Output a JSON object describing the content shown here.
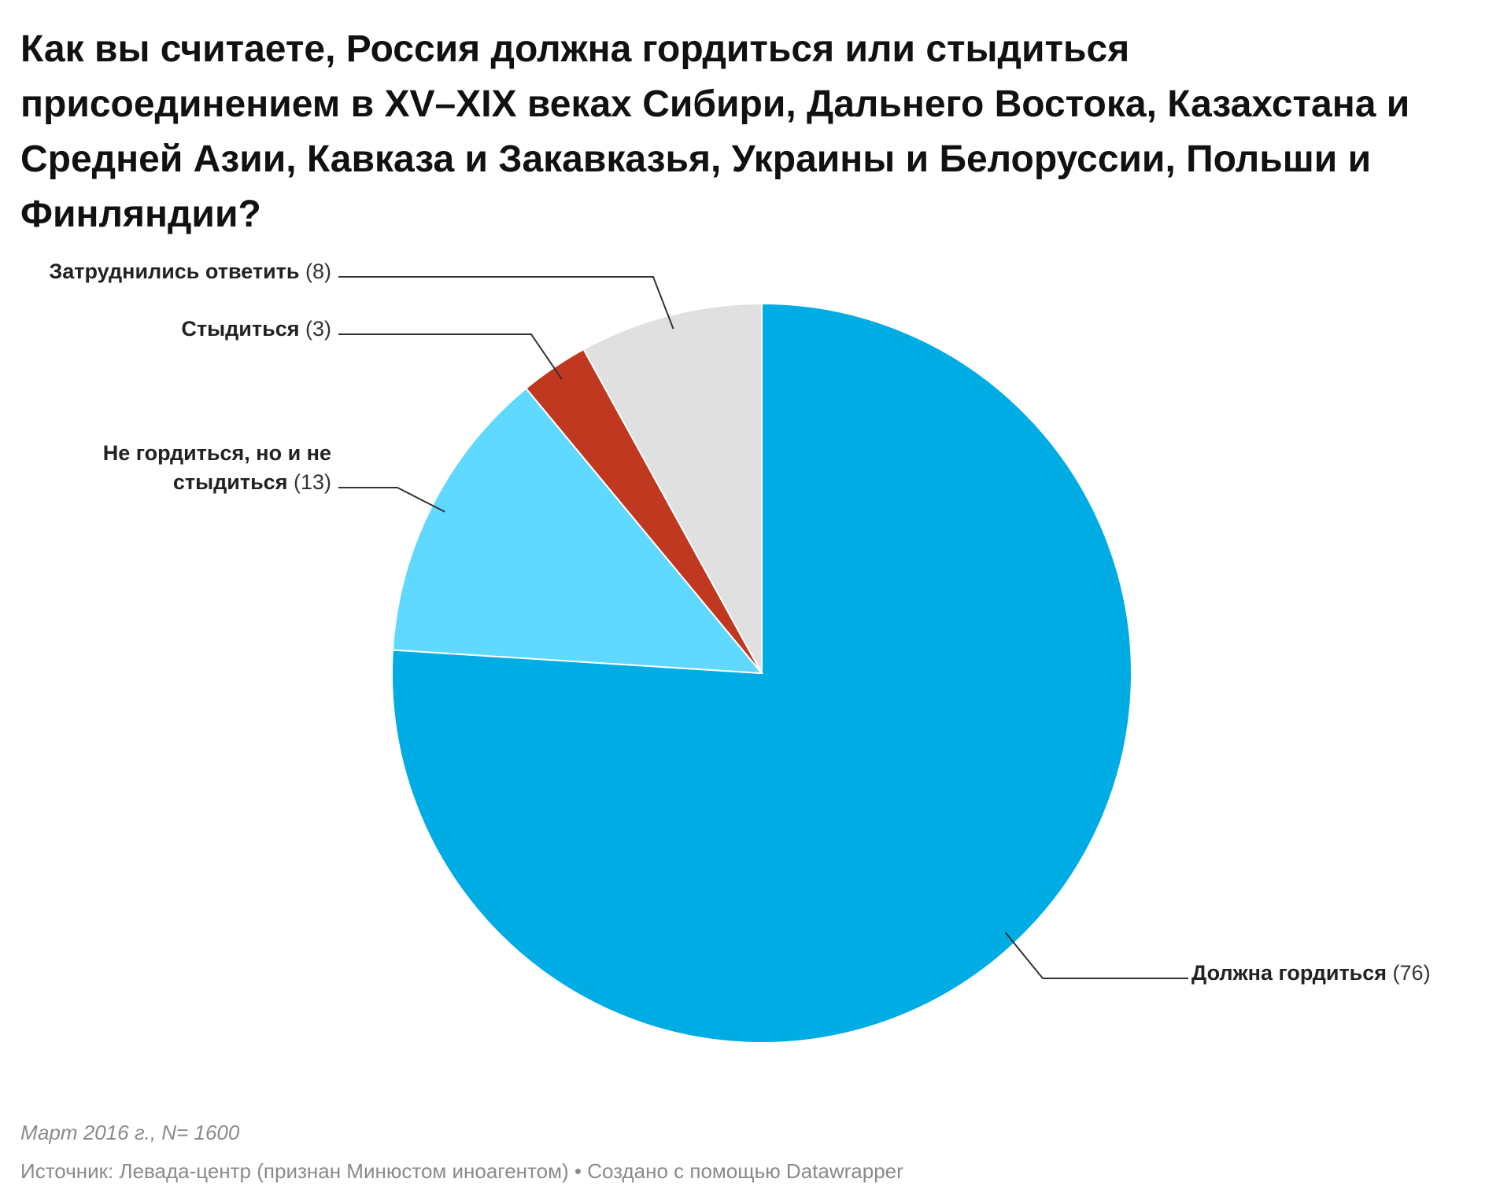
{
  "chart_data": {
    "type": "pie",
    "title": "Как вы считаете, Россия должна гордиться или стыдиться присоединением в XV–XIX веках Сибири, Дальнего Востока, Казахстана и Средней Азии, Кавказа и Закавказья, Украины и Белоруссии, Польши и Финляндии?",
    "slices": [
      {
        "label": "Должна гордиться",
        "value": 76,
        "value_text": "(76)",
        "color": "#00ace4",
        "label_lines": [
          "Должна гордиться"
        ]
      },
      {
        "label": "Не гордиться, но и не стыдиться",
        "value": 13,
        "value_text": "(13)",
        "color": "#5fd9ff",
        "label_lines": [
          "Не гордиться, но и не",
          "стыдиться"
        ]
      },
      {
        "label": "Стыдиться",
        "value": 3,
        "value_text": "(3)",
        "color": "#c0381f",
        "label_lines": [
          "Стыдиться"
        ]
      },
      {
        "label": "Затруднились ответить",
        "value": 8,
        "value_text": "(8)",
        "color": "#e0e0e0",
        "label_lines": [
          "Затруднились ответить"
        ]
      }
    ],
    "start_angle": "12 o'clock",
    "direction": "clockwise",
    "note": "Март 2016 г., N= 1600",
    "source": "Источник: Левада-центр (признан Минюстом иноагентом) • Создано с помощью Datawrapper"
  }
}
